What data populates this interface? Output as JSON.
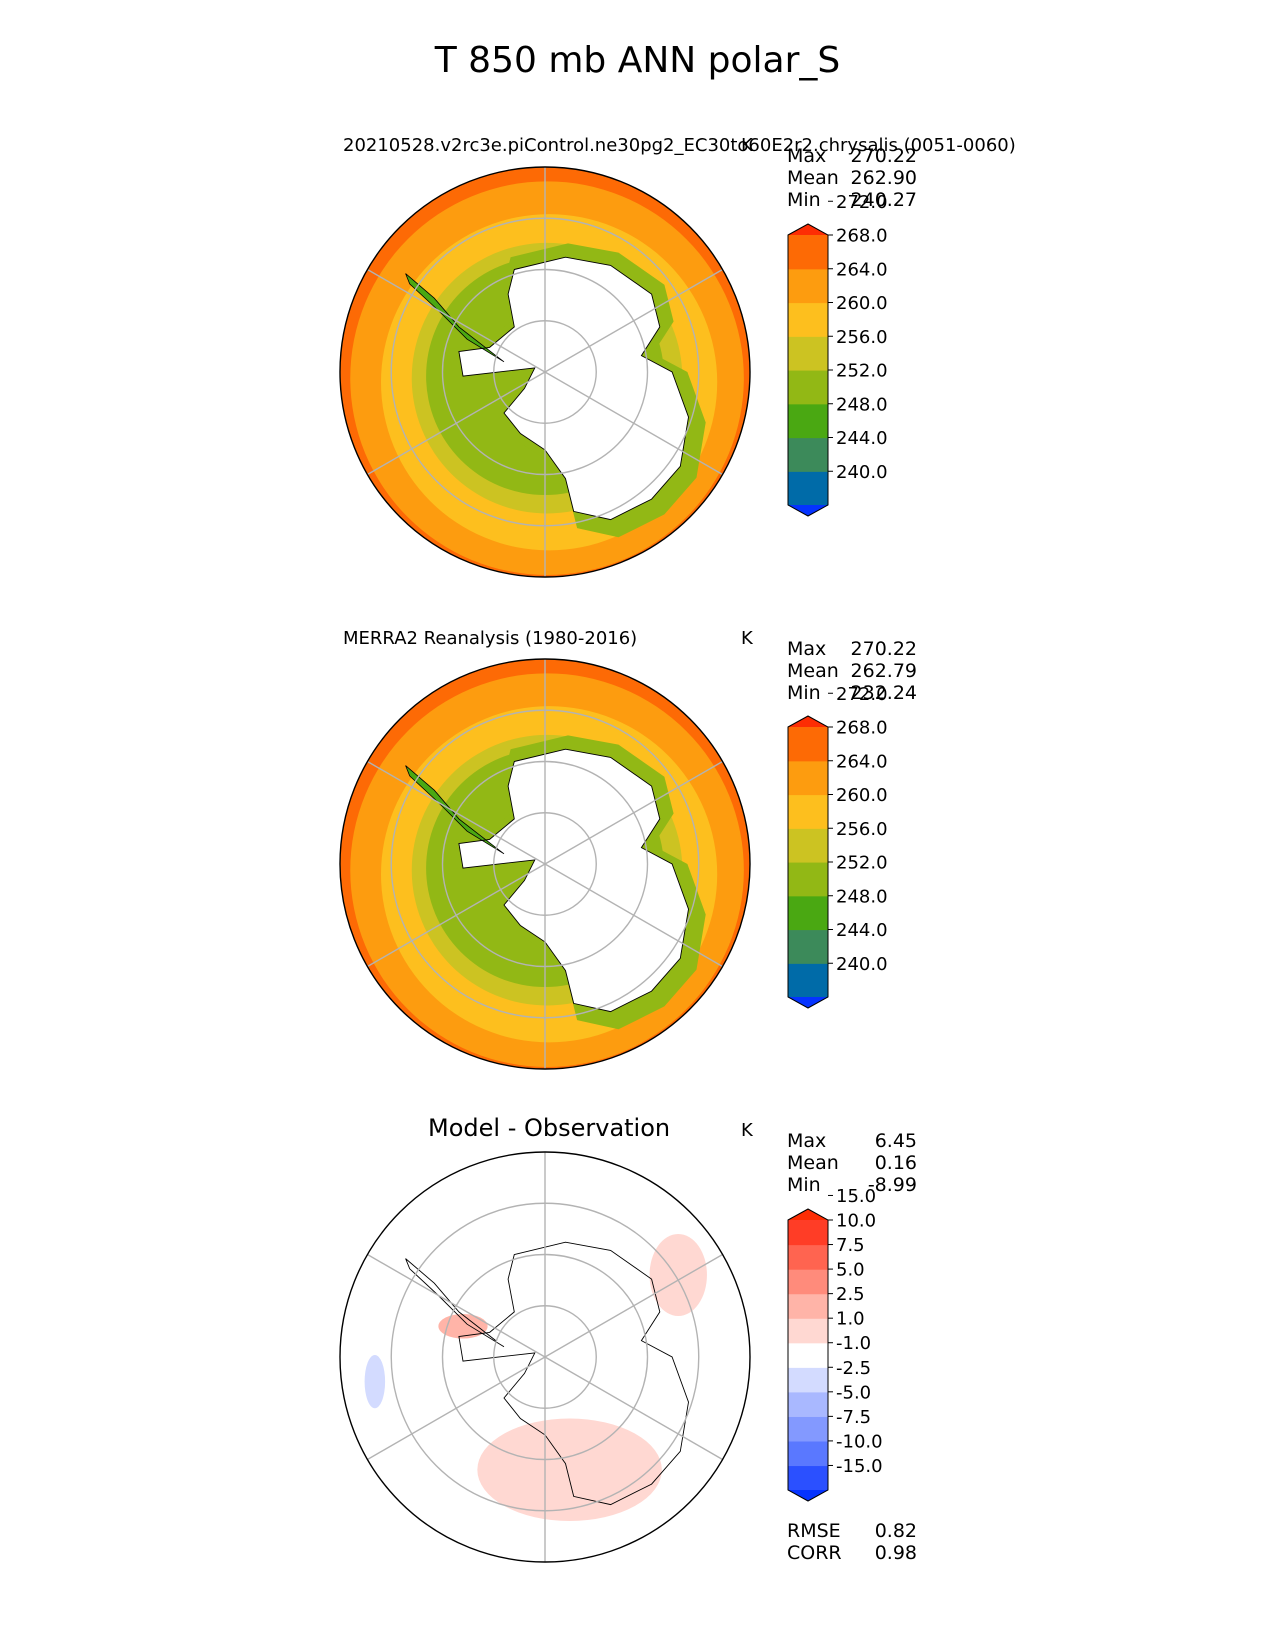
{
  "title": "T 850 mb ANN polar_S",
  "chart_data": [
    {
      "type": "heatmap",
      "projection": "south-polar-stereographic",
      "title": "20210528.v2rc3e.piControl.ne30pg2_EC30to60E2r2.chrysalis (0051-0060)",
      "units": "K",
      "stats": {
        "max_label": "Max",
        "max": "270.22",
        "mean_label": "Mean",
        "mean": "262.90",
        "min_label": "Min",
        "min": "240.27"
      },
      "colorbar": {
        "ticks": [
          "240.0",
          "244.0",
          "248.0",
          "252.0",
          "256.0",
          "260.0",
          "264.0",
          "268.0",
          "272.0"
        ],
        "colors": [
          "#0533ff",
          "#006ba8",
          "#3c8a5a",
          "#4aa812",
          "#92b815",
          "#ccc322",
          "#fdbf1e",
          "#fd9c0f",
          "#fd6a05",
          "#fd2d04"
        ],
        "extend": "both"
      },
      "rings": [
        "#fd6a05",
        "#fd9c0f",
        "#fdbf1e",
        "#ccc322",
        "#92b815"
      ]
    },
    {
      "type": "heatmap",
      "projection": "south-polar-stereographic",
      "title": "MERRA2 Reanalysis (1980-2016)",
      "units": "K",
      "stats": {
        "max_label": "Max",
        "max": "270.22",
        "mean_label": "Mean",
        "mean": "262.79",
        "min_label": "Min",
        "min": "232.24"
      },
      "colorbar": {
        "ticks": [
          "240.0",
          "244.0",
          "248.0",
          "252.0",
          "256.0",
          "260.0",
          "264.0",
          "268.0",
          "272.0"
        ],
        "colors": [
          "#0533ff",
          "#006ba8",
          "#3c8a5a",
          "#4aa812",
          "#92b815",
          "#ccc322",
          "#fdbf1e",
          "#fd9c0f",
          "#fd6a05",
          "#fd2d04"
        ],
        "extend": "both"
      },
      "rings": [
        "#fd6a05",
        "#fd9c0f",
        "#fdbf1e",
        "#ccc322",
        "#92b815"
      ]
    },
    {
      "type": "heatmap",
      "projection": "south-polar-stereographic",
      "title": "Model - Observation",
      "units": "K",
      "stats": {
        "max_label": "Max",
        "max": "6.45",
        "mean_label": "Mean",
        "mean": "0.16",
        "min_label": "Min",
        "min": "-8.99"
      },
      "colorbar": {
        "ticks": [
          "-15.0",
          "-10.0",
          "-7.5",
          "-5.0",
          "-2.5",
          "-1.0",
          "1.0",
          "2.5",
          "5.0",
          "7.5",
          "10.0",
          "15.0"
        ],
        "colors": [
          "#0533ff",
          "#2b50ff",
          "#5a78ff",
          "#8399ff",
          "#a9b8ff",
          "#d3dbff",
          "#ffffff",
          "#ffd8d2",
          "#ffb4a8",
          "#ff8b7b",
          "#ff6450",
          "#ff3d26",
          "#fd2d04"
        ],
        "extend": "both"
      },
      "extra_stats": {
        "rmse_label": "RMSE",
        "rmse": "0.82",
        "corr_label": "CORR",
        "corr": "0.98"
      }
    }
  ]
}
